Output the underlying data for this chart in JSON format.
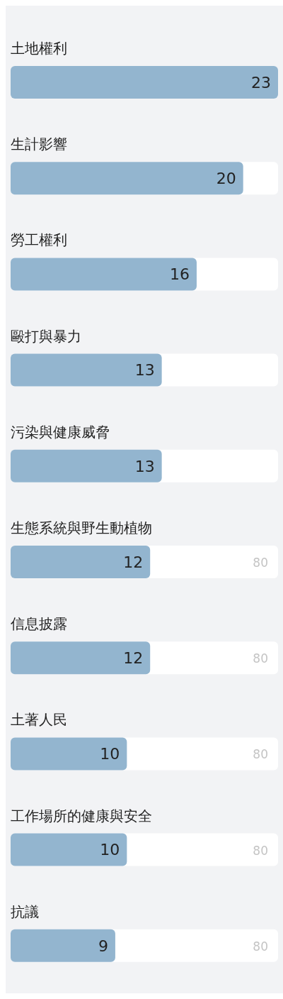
{
  "chart_data": {
    "type": "bar",
    "orientation": "horizontal",
    "data_labels": true,
    "categories": [
      "土地權利",
      "生計影響",
      "勞工權利",
      "毆打與暴力",
      "污染與健康威脅",
      "生態系統與野生動植物",
      "信息披露",
      "土著人民",
      "工作場所的健康與安全",
      "抗議"
    ],
    "values": [
      23,
      20,
      16,
      13,
      13,
      12,
      12,
      10,
      10,
      9
    ],
    "color": "#93b5cf",
    "annotations": [
      "80",
      "80",
      "80",
      "80",
      "80"
    ]
  }
}
